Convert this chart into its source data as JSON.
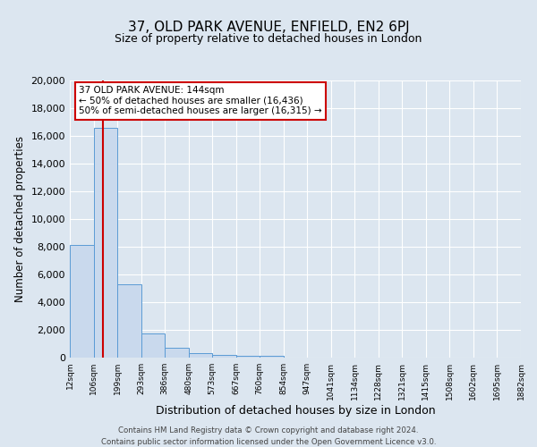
{
  "title": "37, OLD PARK AVENUE, ENFIELD, EN2 6PJ",
  "subtitle": "Size of property relative to detached houses in London",
  "xlabel": "Distribution of detached houses by size in London",
  "ylabel": "Number of detached properties",
  "bar_values": [
    8100,
    16600,
    5300,
    1750,
    700,
    300,
    200,
    150,
    150,
    0,
    0,
    0,
    0,
    0,
    0,
    0,
    0,
    0,
    0
  ],
  "bin_labels": [
    "12sqm",
    "106sqm",
    "199sqm",
    "293sqm",
    "386sqm",
    "480sqm",
    "573sqm",
    "667sqm",
    "760sqm",
    "854sqm",
    "947sqm",
    "1041sqm",
    "1134sqm",
    "1228sqm",
    "1321sqm",
    "1415sqm",
    "1508sqm",
    "1602sqm",
    "1695sqm",
    "1882sqm"
  ],
  "bar_color": "#c9d9ed",
  "bar_edge_color": "#5b9bd5",
  "marker_color": "#cc0000",
  "annotation_title": "37 OLD PARK AVENUE: 144sqm",
  "annotation_line1": "← 50% of detached houses are smaller (16,436)",
  "annotation_line2": "50% of semi-detached houses are larger (16,315) →",
  "annotation_box_color": "#ffffff",
  "annotation_box_edge": "#cc0000",
  "ylim": [
    0,
    20000
  ],
  "yticks": [
    0,
    2000,
    4000,
    6000,
    8000,
    10000,
    12000,
    14000,
    16000,
    18000,
    20000
  ],
  "background_color": "#dce6f0",
  "grid_color": "#ffffff",
  "footer1": "Contains HM Land Registry data © Crown copyright and database right 2024.",
  "footer2": "Contains public sector information licensed under the Open Government Licence v3.0."
}
